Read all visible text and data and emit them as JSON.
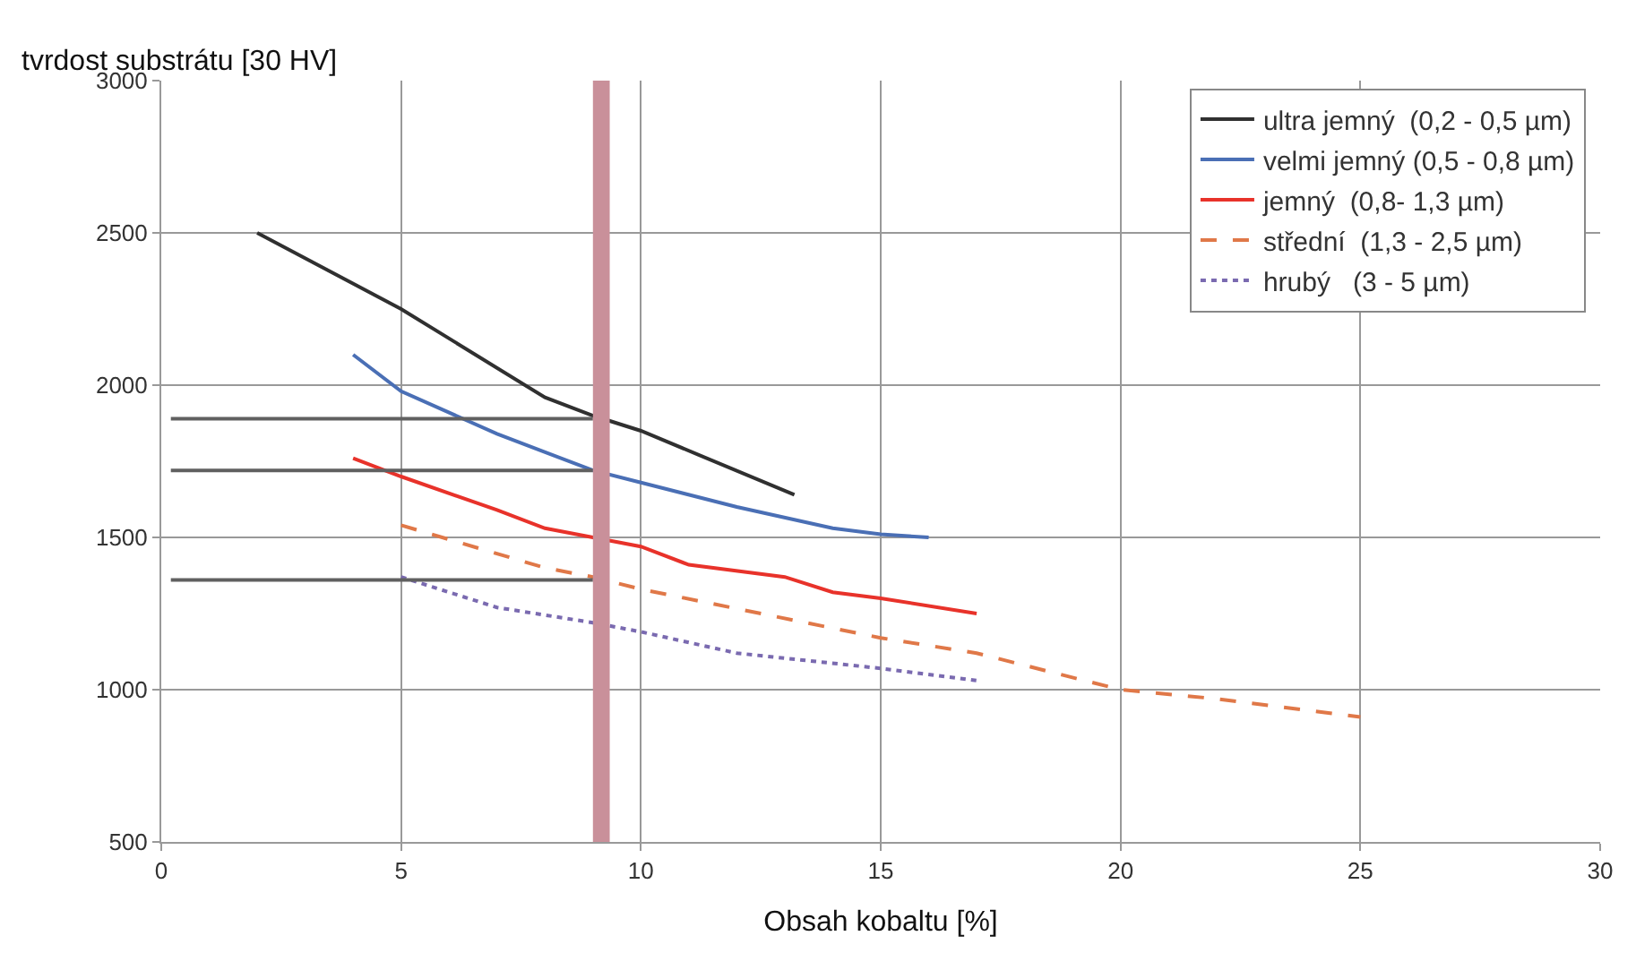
{
  "chart_data": {
    "type": "line",
    "ylabel": "tvrdost substrátu [30 HV]",
    "xlabel": "Obsah kobaltu [%]",
    "xlim": [
      0,
      30
    ],
    "xticks": [
      0,
      5,
      10,
      15,
      20,
      25,
      30
    ],
    "ylim": [
      500,
      3000
    ],
    "yticks": [
      500,
      1000,
      1500,
      2000,
      2500,
      3000
    ],
    "grid": true,
    "legend": "top right",
    "marker": "none",
    "series": [
      {
        "name": "ultra jemný  (0,2 - 0,5 µm)",
        "color": "#303030",
        "line_style": "solid",
        "x": [
          2,
          5,
          8,
          9,
          10,
          13.2
        ],
        "values": [
          2500,
          2250,
          1960,
          1900,
          1850,
          1640
        ]
      },
      {
        "name": "velmi jemný (0,5 - 0,8 µm)",
        "color": "#4a6fb5",
        "line_style": "solid",
        "x": [
          4,
          5,
          7,
          9,
          10,
          12,
          14,
          15,
          16
        ],
        "values": [
          2100,
          1980,
          1840,
          1720,
          1680,
          1600,
          1530,
          1510,
          1500
        ]
      },
      {
        "name": "jemný  (0,8- 1,3 µm)",
        "color": "#e8322a",
        "line_style": "solid",
        "x": [
          4,
          5,
          7,
          8,
          9,
          10,
          11,
          13,
          14,
          15,
          17
        ],
        "values": [
          1760,
          1700,
          1590,
          1530,
          1500,
          1470,
          1410,
          1370,
          1320,
          1300,
          1250
        ]
      },
      {
        "name": "střední  (1,3 - 2,5 µm)",
        "color": "#e07848",
        "line_style": "dashed",
        "x": [
          5,
          8,
          9,
          10,
          15,
          17,
          20,
          22,
          25
        ],
        "values": [
          1540,
          1400,
          1370,
          1330,
          1170,
          1120,
          1000,
          970,
          910
        ]
      },
      {
        "name": "hrubý   (3 - 5 µm)",
        "color": "#7a6ab0",
        "line_style": "dotted",
        "x": [
          5,
          7,
          9,
          10,
          12,
          15,
          17
        ],
        "values": [
          1370,
          1270,
          1220,
          1190,
          1120,
          1070,
          1030
        ]
      },
      {
        "color": "#606060",
        "line_style": "solid",
        "x": [
          0.2,
          9
        ],
        "values": [
          1890,
          1890
        ]
      },
      {
        "color": "#606060",
        "line_style": "solid",
        "x": [
          0.2,
          9
        ],
        "values": [
          1720,
          1720
        ]
      },
      {
        "color": "#606060",
        "line_style": "solid",
        "x": [
          0.2,
          9
        ],
        "values": [
          1360,
          1360
        ]
      }
    ],
    "bands": [
      {
        "axis": "x",
        "from": 9.0,
        "to": 9.35,
        "color": "#c9909a"
      }
    ]
  }
}
